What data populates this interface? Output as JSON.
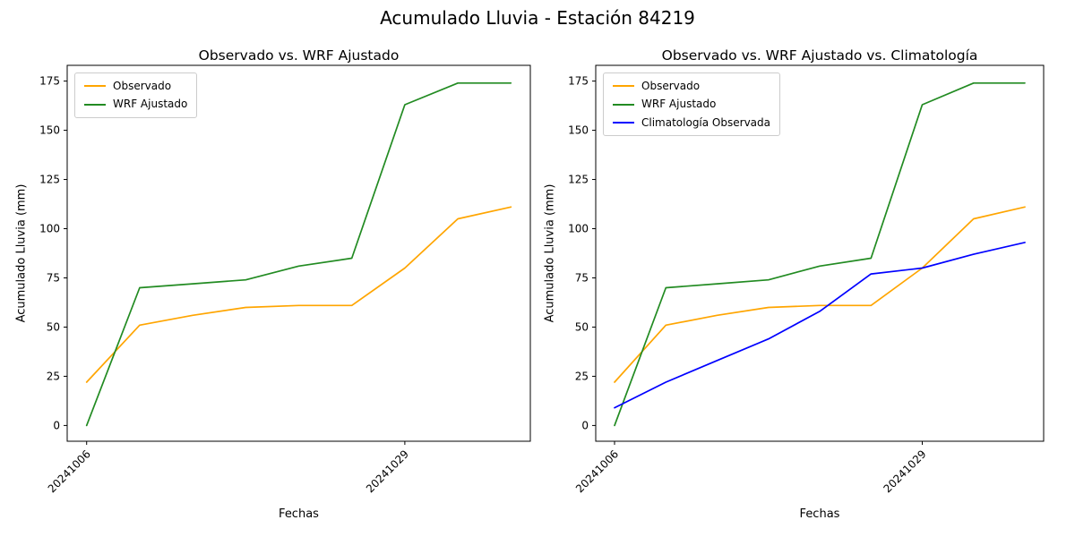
{
  "figure": {
    "title": "Acumulado Lluvia - Estación 84219"
  },
  "chart_data": [
    {
      "type": "line",
      "title": "Observado vs. WRF Ajustado",
      "xlabel": "Fechas",
      "ylabel": "Acumulado Lluvia (mm)",
      "x": [
        0,
        1,
        2,
        3,
        4,
        5,
        6,
        7,
        8
      ],
      "xticks": [
        {
          "index": 0,
          "label": "20241006"
        },
        {
          "index": 6,
          "label": "20241029"
        }
      ],
      "yticks": [
        0,
        25,
        50,
        75,
        100,
        125,
        150,
        175
      ],
      "ylim": [
        -8,
        183
      ],
      "grid": false,
      "legend_position": "upper left",
      "series": [
        {
          "name": "Observado",
          "color": "#ffa500",
          "values": [
            22,
            51,
            56,
            60,
            61,
            61,
            80,
            105,
            111
          ]
        },
        {
          "name": "WRF Ajustado",
          "color": "#228B22",
          "values": [
            0,
            70,
            72,
            74,
            81,
            85,
            163,
            174,
            174
          ]
        }
      ]
    },
    {
      "type": "line",
      "title": "Observado vs. WRF Ajustado vs. Climatología",
      "xlabel": "Fechas",
      "ylabel": "Acumulado Lluvia (mm)",
      "x": [
        0,
        1,
        2,
        3,
        4,
        5,
        6,
        7,
        8
      ],
      "xticks": [
        {
          "index": 0,
          "label": "20241006"
        },
        {
          "index": 6,
          "label": "20241029"
        }
      ],
      "yticks": [
        0,
        25,
        50,
        75,
        100,
        125,
        150,
        175
      ],
      "ylim": [
        -8,
        183
      ],
      "grid": false,
      "legend_position": "upper left",
      "series": [
        {
          "name": "Observado",
          "color": "#ffa500",
          "values": [
            22,
            51,
            56,
            60,
            61,
            61,
            80,
            105,
            111
          ]
        },
        {
          "name": "WRF Ajustado",
          "color": "#228B22",
          "values": [
            0,
            70,
            72,
            74,
            81,
            85,
            163,
            174,
            174
          ]
        },
        {
          "name": "Climatología Observada",
          "color": "#0000ff",
          "values": [
            9,
            22,
            33,
            44,
            58,
            77,
            80,
            87,
            93
          ]
        }
      ]
    }
  ]
}
